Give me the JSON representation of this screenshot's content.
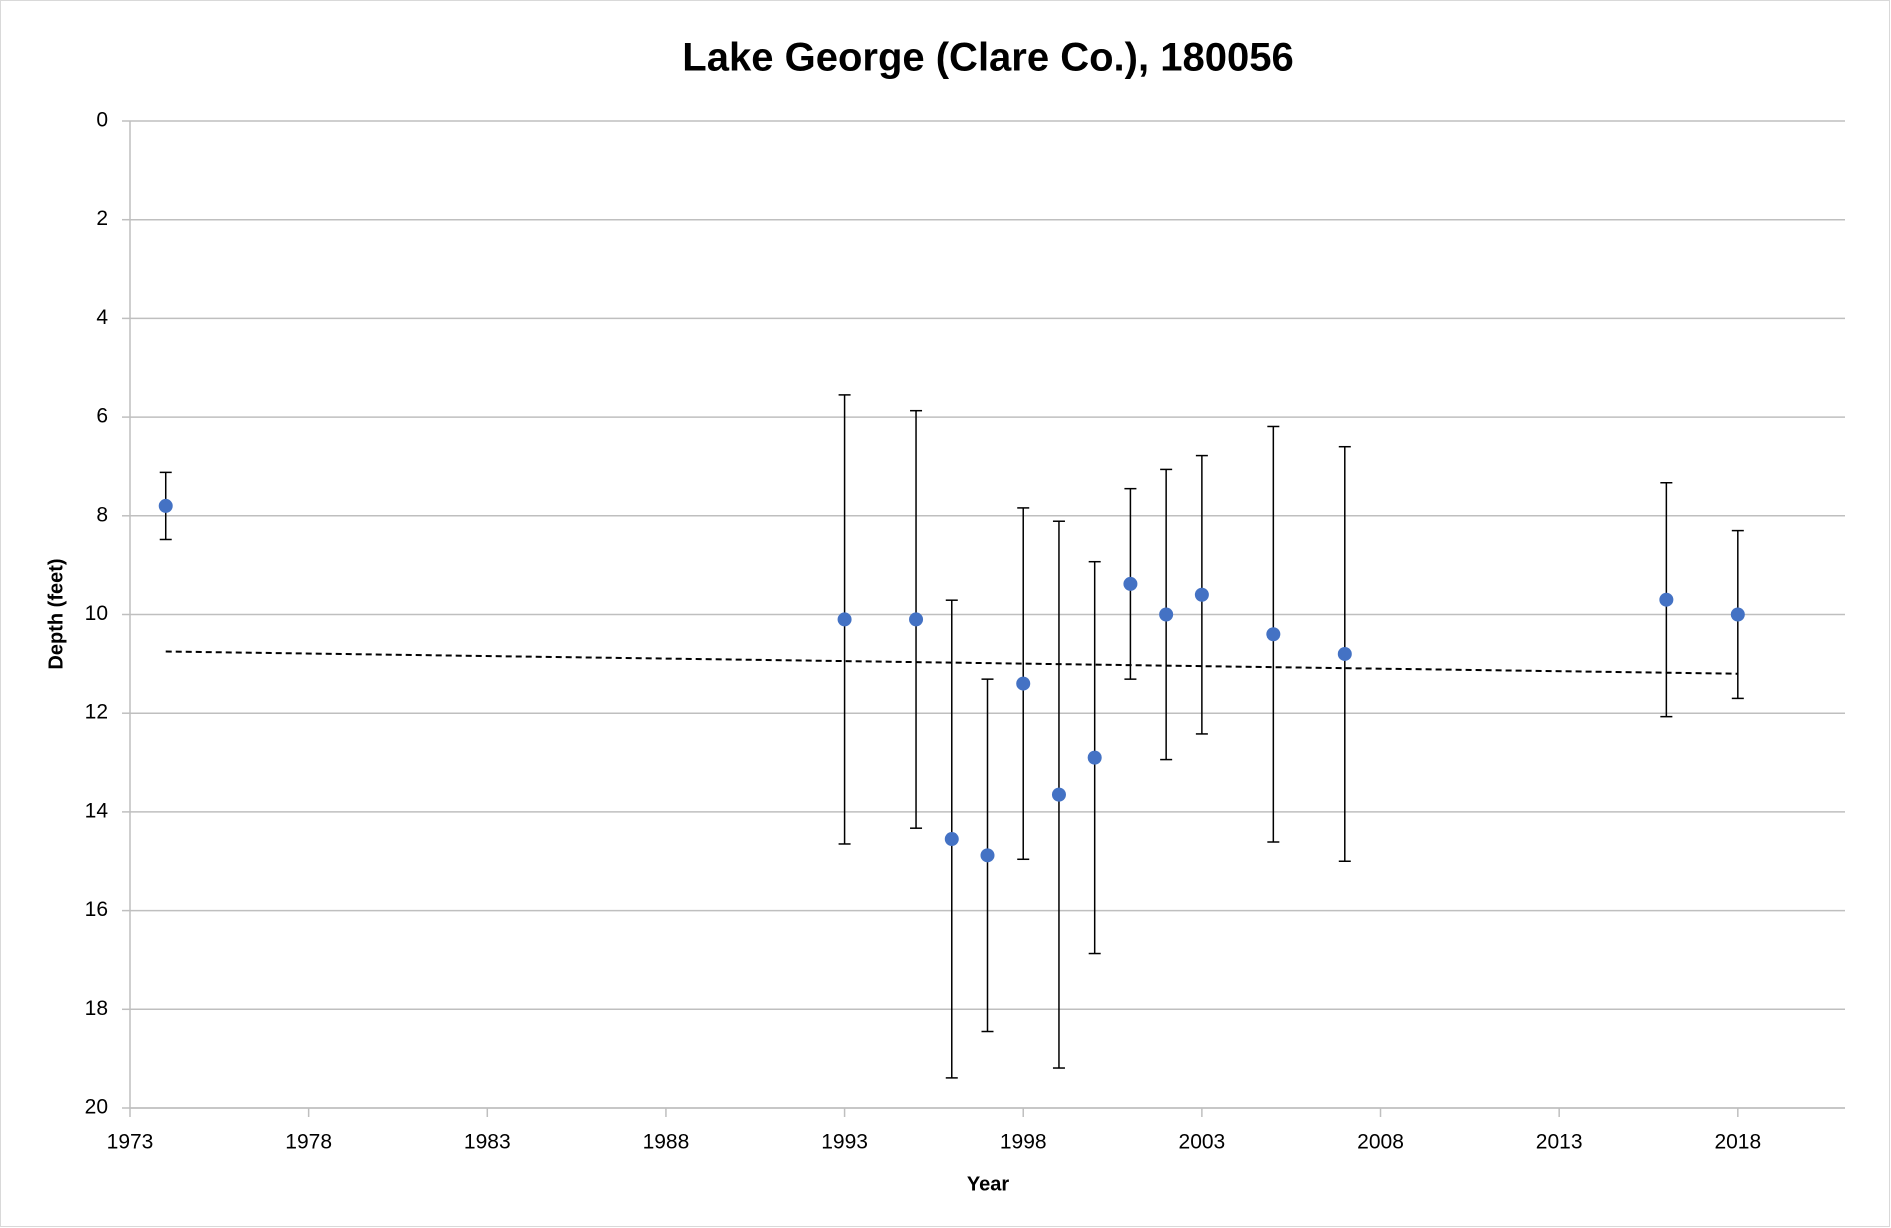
{
  "chart_data": {
    "type": "scatter",
    "title": "Lake George (Clare Co.), 180056",
    "x_label": "Year",
    "y_label": "Depth (feet)",
    "series": [
      {
        "color": "#4472c4",
        "x": [
          1974,
          1993,
          1995,
          1996,
          1997,
          1998,
          1999,
          2000,
          2001,
          2002,
          2003,
          2005,
          2007,
          2016,
          2018
        ],
        "values": [
          7.8,
          10.1,
          10.1,
          14.55,
          14.88,
          11.4,
          13.65,
          12.9,
          9.38,
          10.0,
          9.6,
          10.4,
          10.8,
          9.7,
          10.0
        ],
        "errors": [
          0.68,
          4.55,
          4.23,
          4.84,
          3.57,
          3.56,
          5.54,
          3.97,
          1.93,
          2.94,
          2.82,
          4.21,
          4.2,
          2.37,
          1.7
        ]
      }
    ],
    "trendline": {
      "x": [
        1974,
        2018
      ],
      "values": [
        10.75,
        11.2
      ],
      "color": "#000000"
    },
    "xlim": [
      1973,
      2021
    ],
    "xticks": [
      1973,
      1978,
      1983,
      1988,
      1993,
      1998,
      2003,
      2008,
      2013,
      2018
    ],
    "ylim": [
      0,
      20
    ],
    "yticks": [
      0,
      2,
      4,
      6,
      8,
      10,
      12,
      14,
      16,
      18,
      20
    ],
    "y_reversed": true,
    "grid": true
  }
}
